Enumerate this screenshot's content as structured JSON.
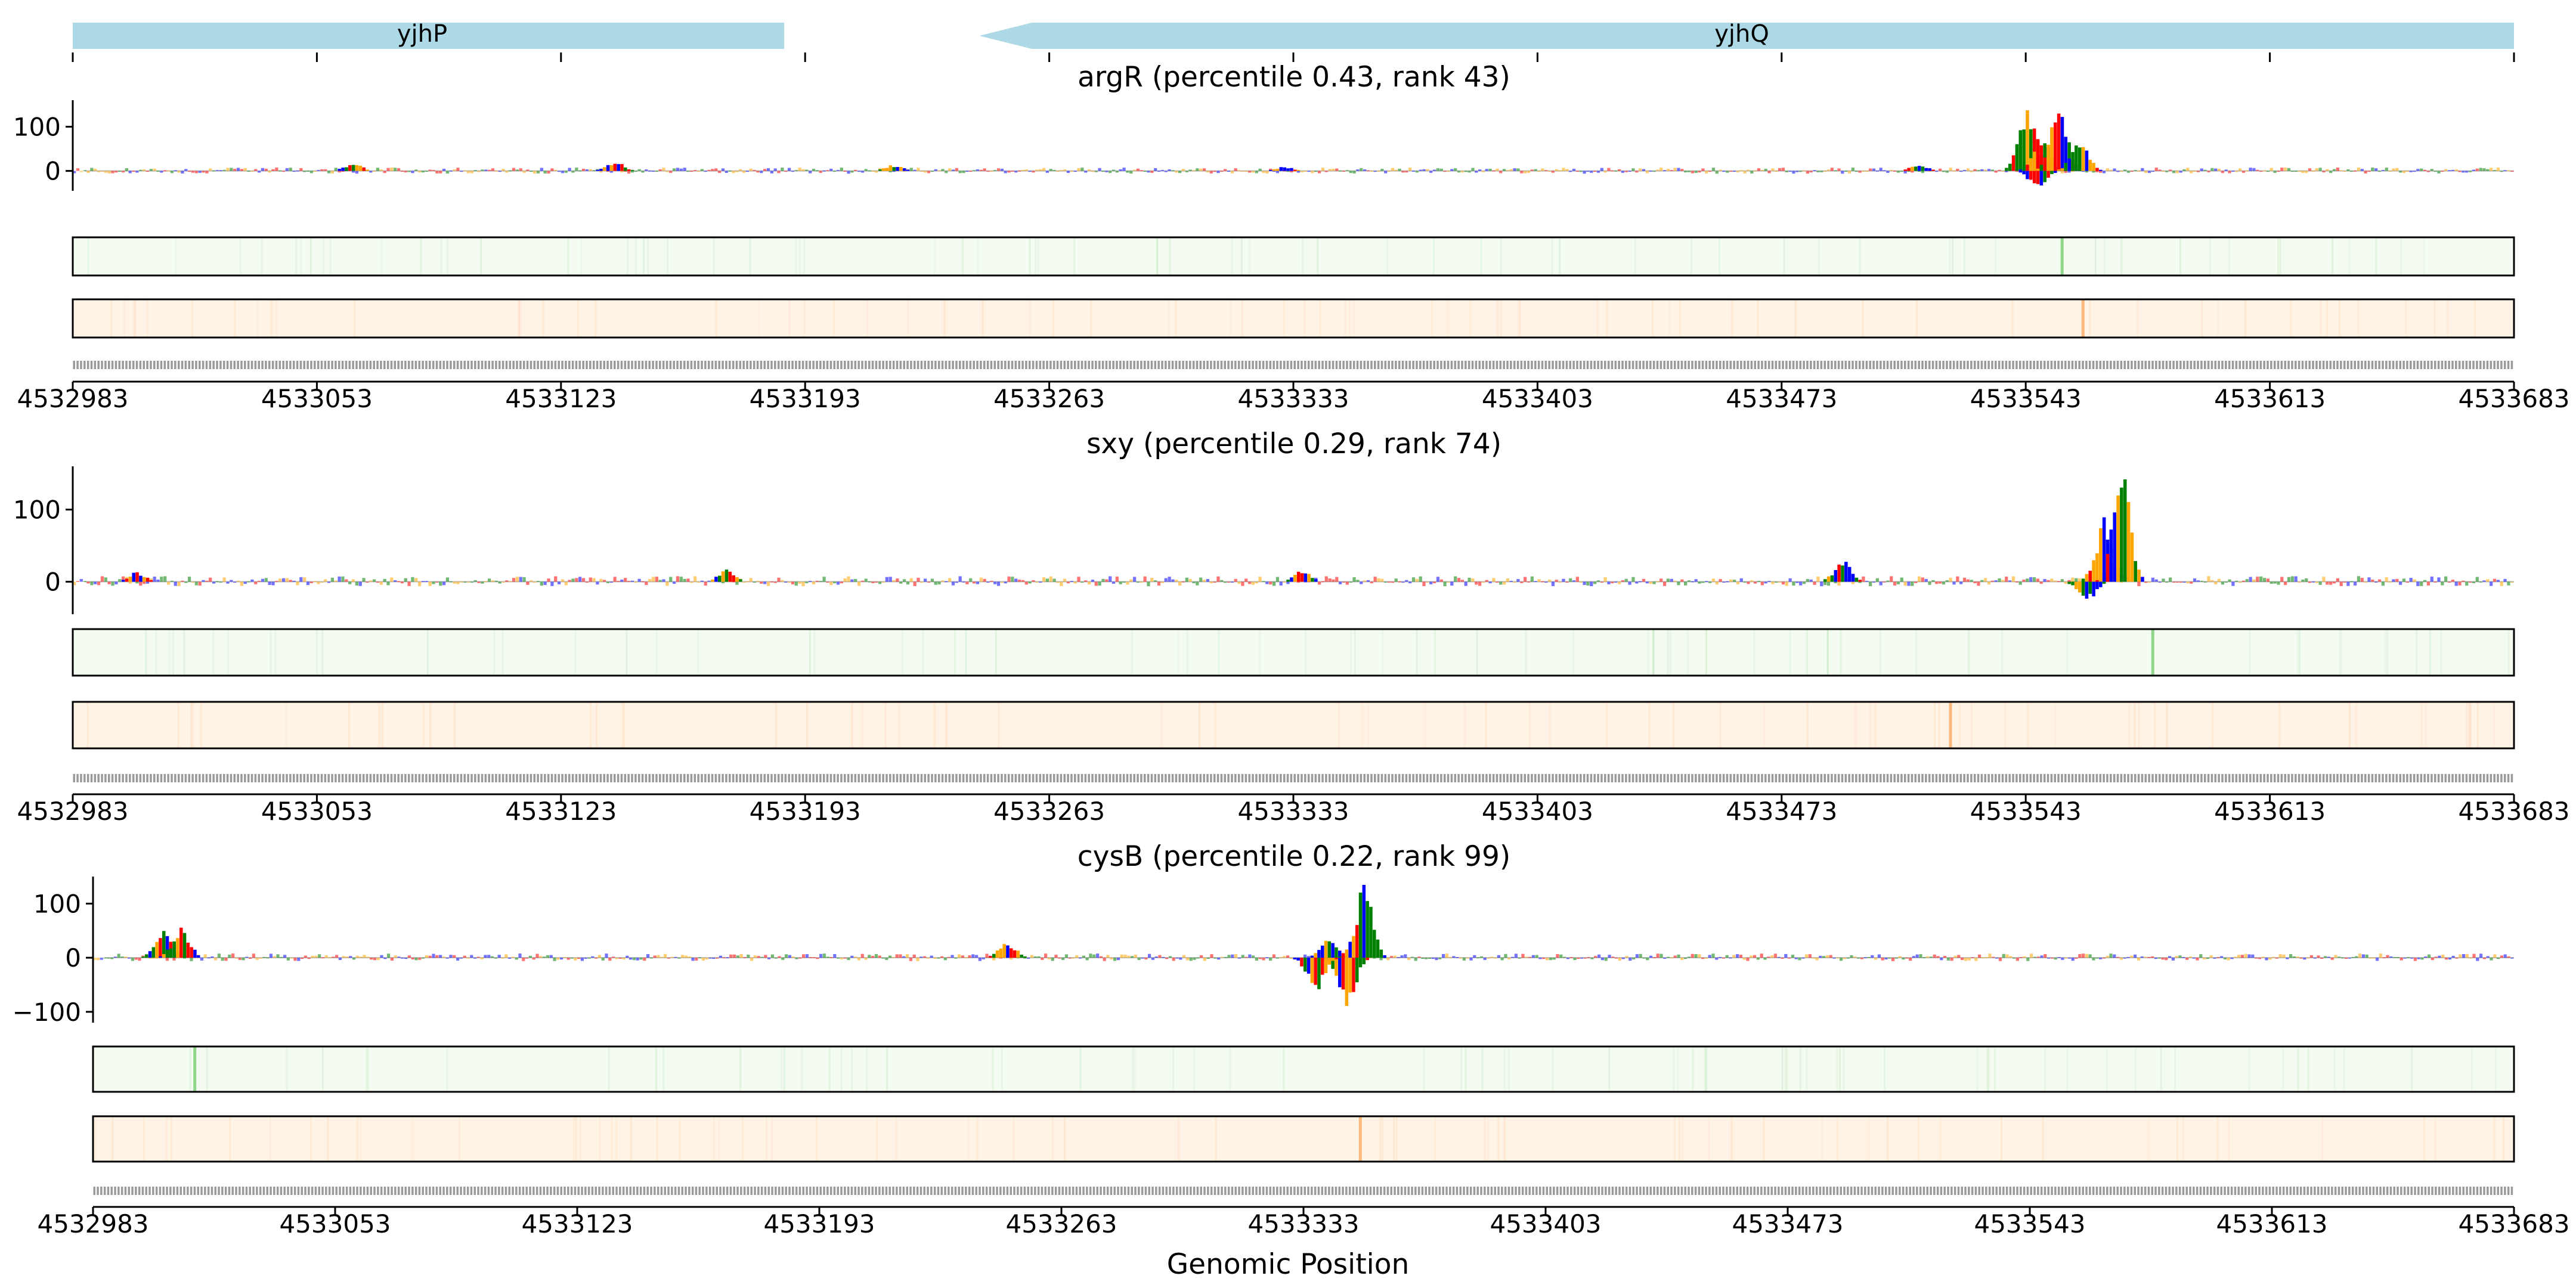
{
  "gene_track": {
    "genes": [
      {
        "name": "yjhP",
        "start": 4532983,
        "end": 4533187,
        "strand": "+"
      },
      {
        "name": "yjhQ",
        "start": 4533243,
        "end": 4533683,
        "strand": "-"
      }
    ],
    "color": "#add8e6"
  },
  "colors": {
    "A": "#008000",
    "C": "#0000ff",
    "G": "#ffa500",
    "T": "#ff0000",
    "heatmap_green_base": "#f4fbf1",
    "heatmap_green_peak": "#8fd68a",
    "heatmap_orange_base": "#fff3e6",
    "heatmap_orange_peak": "#fdb97d",
    "sequence_text": "#9a9a9a"
  },
  "x_ticks": [
    4532983,
    4533053,
    4533123,
    4533193,
    4533263,
    4533333,
    4533403,
    4533473,
    4533543,
    4533613,
    4533683
  ],
  "xlabel": "Genomic Position",
  "chart_data": [
    {
      "type": "sequence-logo",
      "title": "argR (percentile 0.43, rank 43)",
      "xlim": [
        4532983,
        4533683
      ],
      "ylim": [
        -45,
        160
      ],
      "yticks": [
        0,
        100
      ],
      "peaks": [
        {
          "position": 4533063,
          "value": 18
        },
        {
          "position": 4533138,
          "value": 22
        },
        {
          "position": 4533218,
          "value": 14
        },
        {
          "position": 4533330,
          "value": 10
        },
        {
          "position": 4533512,
          "value": 15
        },
        {
          "position": 4533543,
          "value": 150
        },
        {
          "position": 4533547,
          "value": 80
        },
        {
          "position": 4533552,
          "value": 140
        },
        {
          "position": 4533558,
          "value": 70
        },
        {
          "position": 4533546,
          "value": -40
        }
      ],
      "heatmap_green_peak": 4533553,
      "heatmap_orange_peak": 4533559
    },
    {
      "type": "sequence-logo",
      "title": "sxy (percentile 0.29, rank 74)",
      "xlim": [
        4532983,
        4533683
      ],
      "ylim": [
        -45,
        160
      ],
      "yticks": [
        0,
        100
      ],
      "peaks": [
        {
          "position": 4533001,
          "value": 14
        },
        {
          "position": 4533170,
          "value": 18
        },
        {
          "position": 4533335,
          "value": 16
        },
        {
          "position": 4533490,
          "value": 30
        },
        {
          "position": 4533565,
          "value": 90
        },
        {
          "position": 4533570,
          "value": 155
        },
        {
          "position": 4533560,
          "value": -30
        }
      ],
      "heatmap_green_peak": 4533579,
      "heatmap_orange_peak": 4533521
    },
    {
      "type": "sequence-logo",
      "title": "cysB (percentile 0.22, rank 99)",
      "xlim": [
        4532983,
        4533683
      ],
      "ylim": [
        -120,
        150
      ],
      "yticks": [
        -100,
        0,
        100
      ],
      "peaks": [
        {
          "position": 4533003,
          "value": 55
        },
        {
          "position": 4533008,
          "value": 60
        },
        {
          "position": 4533247,
          "value": 30
        },
        {
          "position": 4533340,
          "value": 35
        },
        {
          "position": 4533350,
          "value": 140
        },
        {
          "position": 4533345,
          "value": -105
        },
        {
          "position": 4533336,
          "value": -65
        }
      ],
      "heatmap_green_peak": 4533012,
      "heatmap_orange_peak": 4533349
    }
  ]
}
